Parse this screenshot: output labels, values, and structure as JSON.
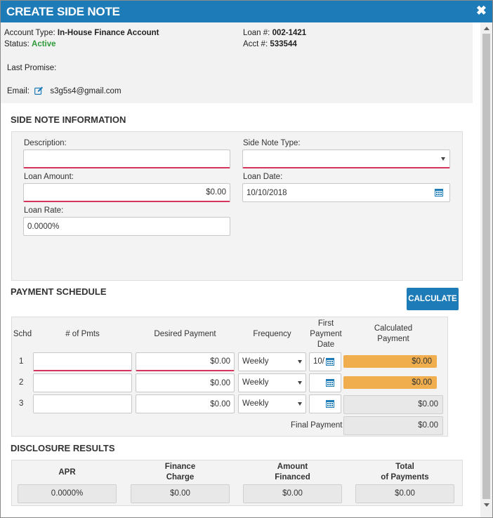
{
  "dialog": {
    "title": "CREATE SIDE NOTE",
    "close_glyph": "✖"
  },
  "account": {
    "type_label": "Account Type:",
    "type_value": "In-House Finance Account",
    "status_label": "Status:",
    "status_value": "Active",
    "loan_label": "Loan #:",
    "loan_value": "002-1421",
    "acct_label": "Acct #:",
    "acct_value": "533544",
    "last_promise_label": "Last Promise:",
    "email_label": "Email:",
    "email_value": "s3g5s4@gmail.com"
  },
  "side_note_info": {
    "title": "SIDE NOTE INFORMATION",
    "description_label": "Description:",
    "description_value": "",
    "type_label": "Side Note Type:",
    "type_value": "",
    "loan_amount_label": "Loan Amount:",
    "loan_amount_value": "$0.00",
    "loan_date_label": "Loan Date:",
    "loan_date_value": "10/10/2018",
    "loan_rate_label": "Loan Rate:",
    "loan_rate_value": "0.0000%"
  },
  "payment_schedule": {
    "title": "PAYMENT SCHEDULE",
    "calculate_label": "CALCULATE",
    "headers": {
      "schd": "Schd",
      "pmts": "# of Pmts",
      "desired": "Desired Payment",
      "frequency": "Frequency",
      "first_date_1": "First",
      "first_date_2": "Payment",
      "first_date_3": "Date",
      "calc_1": "Calculated",
      "calc_2": "Payment"
    },
    "rows": [
      {
        "schd": "1",
        "pmts": "",
        "desired": "$0.00",
        "frequency": "Weekly",
        "first_date": "10/",
        "calculated": "$0.00"
      },
      {
        "schd": "2",
        "pmts": "",
        "desired": "$0.00",
        "frequency": "Weekly",
        "first_date": "",
        "calculated": "$0.00"
      },
      {
        "schd": "3",
        "pmts": "",
        "desired": "$0.00",
        "frequency": "Weekly",
        "first_date": "",
        "calculated": "$0.00"
      }
    ],
    "final_payment_label": "Final Payment",
    "final_payment_value": "$0.00"
  },
  "disclosure": {
    "title": "DISCLOSURE RESULTS",
    "apr_label": "APR",
    "finance_charge_1": "Finance",
    "finance_charge_2": "Charge",
    "amount_financed_1": "Amount",
    "amount_financed_2": "Financed",
    "total_payments_1": "Total",
    "total_payments_2": "of Payments",
    "apr_value": "0.0000%",
    "finance_charge_value": "$0.00",
    "amount_financed_value": "$0.00",
    "total_payments_value": "$0.00"
  },
  "colors": {
    "title_bar": "#1d7bb8",
    "required_underline": "#d6345d",
    "calculated_highlight": "#f0ae4e",
    "active_status": "#2e9a3a"
  }
}
